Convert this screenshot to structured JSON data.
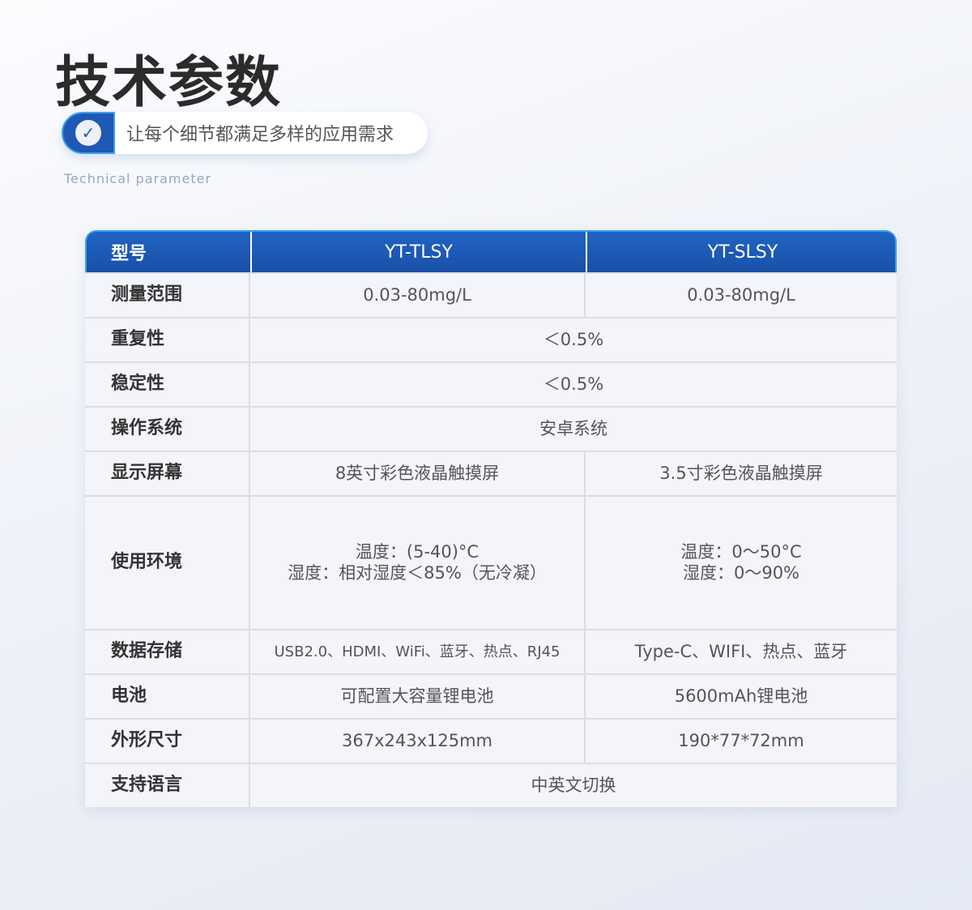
{
  "title": "技术参数",
  "subtitle": "让每个细节都满足多样的应用需求",
  "english": "Technical parameter",
  "table": {
    "header": [
      "型号",
      "YT-TLSY",
      "YT-SLSY"
    ],
    "rows": [
      {
        "label": "测量范围",
        "a": "0.03-80mg/L",
        "b": "0.03-80mg/L"
      },
      {
        "label": "重复性",
        "all": "＜0.5%"
      },
      {
        "label": "稳定性",
        "all": "＜0.5%"
      },
      {
        "label": "操作系统",
        "all": "安卓系统"
      },
      {
        "label": "显示屏幕",
        "a": "8英寸彩色液晶触摸屏",
        "b": "3.5寸彩色液晶触摸屏"
      },
      {
        "label": "使用环境",
        "a1": "温度：(5-40)°C",
        "a2": "湿度：相对湿度＜85%（无冷凝）",
        "b1": "温度：0～50°C",
        "b2": "湿度：0～90%"
      },
      {
        "label": "数据存储",
        "a": "USB2.0、HDMI、WiFi、蓝牙、热点、RJ45",
        "b": "Type-C、WIFI、热点、蓝牙"
      },
      {
        "label": "电池",
        "a": "可配置大容量锂电池",
        "b": "5600mAh锂电池"
      },
      {
        "label": "外形尺寸",
        "a": "367x243x125mm",
        "b": "190*77*72mm"
      },
      {
        "label": "支持语言",
        "all": "中英文切换"
      }
    ]
  }
}
